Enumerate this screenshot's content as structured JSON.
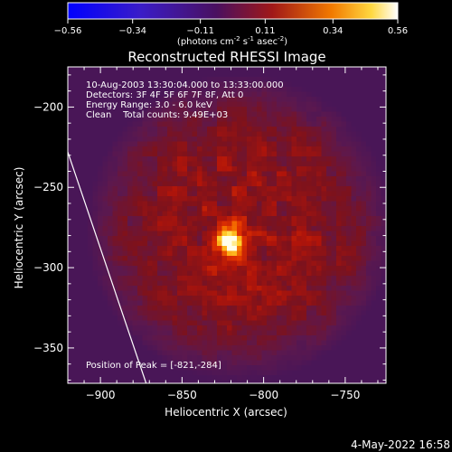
{
  "colorbar": {
    "ticks": [
      "-0.56",
      "-0.34",
      "-0.11",
      "0.11",
      "0.34",
      "0.56"
    ],
    "tick_values": [
      -0.56,
      -0.34,
      -0.11,
      0.11,
      0.34,
      0.56
    ],
    "range": [
      -0.56,
      0.56
    ],
    "units_main": "(photons cm",
    "units_exp1": "-2",
    "units_s": " s",
    "units_exp2": "-1",
    "units_asec": " asec",
    "units_exp3": "-2",
    "units_close": ")"
  },
  "chart_data": {
    "type": "heatmap",
    "title": "Reconstructed RHESSI Image",
    "xlabel": "Heliocentric X (arcsec)",
    "ylabel": "Heliocentric Y (arcsec)",
    "xlim": [
      -920,
      -725
    ],
    "ylim": [
      -372,
      -175
    ],
    "x_ticks": [
      -900,
      -850,
      -800,
      -750
    ],
    "x_tick_labels": [
      "−900",
      "−850",
      "−800",
      "−750"
    ],
    "y_ticks": [
      -200,
      -250,
      -300,
      -350
    ],
    "y_tick_labels": [
      "−200",
      "−250",
      "−300",
      "−350"
    ],
    "colormap": "hot-on-violet",
    "peak": [
      -821,
      -284
    ],
    "limb_line": [
      [
        -920,
        -228
      ],
      [
        -872,
        -372
      ]
    ],
    "info_lines": [
      "10-Aug-2003 13:30:04.000 to 13:33:00.000",
      "Detectors: 3F 4F 5F 6F 7F 8F, Att 0",
      "Energy Range: 3.0 - 6.0 keV",
      "Clean    Total counts: 9.49E+03"
    ],
    "peak_label": "Position of Peak = [-821,-284]"
  },
  "timestamp": "4-May-2022 16:58"
}
